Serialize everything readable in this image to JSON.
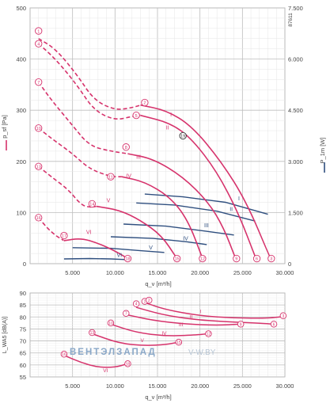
{
  "doc_id": "87611",
  "watermark": {
    "left": "ВЕНТЭЛЗАПАД",
    "right": "V-W.BY"
  },
  "colors": {
    "pressure": "#d6336c",
    "power": "#2f4f7f",
    "grid": "#cfcfcf",
    "axis_text": "#444444",
    "watermark_left": "#8aa8c8",
    "watermark_right": "#b9c7d6"
  },
  "chart_data": [
    {
      "type": "line",
      "x_ticks": [
        "5.000",
        "10.000",
        "15.000",
        "20.000",
        "25.000",
        "30.000"
      ],
      "xlim": [
        0,
        30000
      ],
      "xlabel": "q_v [m³/h]",
      "ylabel_left": "p_sf [Pa]",
      "ylabel_right": "P_1m [W]",
      "ylim": [
        0,
        500
      ],
      "ylim_right": [
        0,
        7500
      ],
      "y_ticks": [
        "0",
        "100",
        "200",
        "300",
        "400",
        "500"
      ],
      "y_ticks_right": [
        "0",
        "1.500",
        "3.000",
        "4.500",
        "6.000",
        "7.500"
      ],
      "grid": true,
      "pressure_curves": [
        {
          "name": "I",
          "dashed": [
            [
              1000,
              440
            ],
            [
              3000,
              420
            ],
            [
              5500,
              370
            ],
            [
              7500,
              320
            ],
            [
              10000,
              300
            ],
            [
              12000,
              305
            ],
            [
              13000,
              310
            ]
          ],
          "solid": [
            [
              13000,
              310
            ],
            [
              16000,
              300
            ],
            [
              19000,
              270
            ],
            [
              22500,
              200
            ],
            [
              25500,
              120
            ],
            [
              28300,
              10
            ]
          ]
        },
        {
          "name": "II",
          "dashed": [
            [
              1000,
              430
            ],
            [
              3000,
              400
            ],
            [
              5500,
              350
            ],
            [
              7500,
              300
            ],
            [
              10000,
              280
            ],
            [
              12000,
              288
            ],
            [
              13000,
              290
            ]
          ],
          "solid": [
            [
              13000,
              290
            ],
            [
              16500,
              275
            ],
            [
              19000,
              245
            ],
            [
              22000,
              180
            ],
            [
              24500,
              100
            ],
            [
              26600,
              10
            ]
          ]
        },
        {
          "name": "III",
          "dashed": [
            [
              1000,
              355
            ],
            [
              2500,
              320
            ],
            [
              5000,
              270
            ],
            [
              7000,
              230
            ],
            [
              9500,
              220
            ],
            [
              11500,
              215
            ]
          ],
          "solid": [
            [
              11500,
              215
            ],
            [
              14500,
              205
            ],
            [
              18000,
              170
            ],
            [
              21000,
              120
            ],
            [
              22800,
              70
            ],
            [
              24200,
              10
            ]
          ]
        },
        {
          "name": "IV",
          "dashed": [
            [
              1000,
              265
            ],
            [
              2500,
              245
            ],
            [
              5000,
              215
            ],
            [
              7000,
              185
            ],
            [
              9500,
              170
            ],
            [
              10800,
              170
            ]
          ],
          "solid": [
            [
              10800,
              170
            ],
            [
              13500,
              160
            ],
            [
              16500,
              130
            ],
            [
              18600,
              85
            ],
            [
              20300,
              10
            ]
          ]
        },
        {
          "name": "V",
          "dashed": [
            [
              1000,
              190
            ],
            [
              2500,
              170
            ],
            [
              4500,
              145
            ],
            [
              6000,
              115
            ],
            [
              7000,
              110
            ],
            [
              7800,
              112
            ]
          ],
          "solid": [
            [
              7800,
              112
            ],
            [
              10500,
              105
            ],
            [
              13000,
              85
            ],
            [
              15500,
              55
            ],
            [
              17300,
              10
            ]
          ]
        },
        {
          "name": "VI",
          "dashed": [
            [
              1000,
              90
            ],
            [
              2000,
              70
            ],
            [
              3000,
              55
            ],
            [
              4000,
              45
            ]
          ],
          "solid": [
            [
              4000,
              45
            ],
            [
              6000,
              50
            ],
            [
              8000,
              40
            ],
            [
              10000,
              25
            ],
            [
              11500,
              10
            ]
          ]
        }
      ],
      "power_curves": [
        {
          "name": "I",
          "points": [
            [
              13500,
              2040
            ],
            [
              18000,
              1960
            ],
            [
              23000,
              1800
            ],
            [
              28000,
              1450
            ]
          ]
        },
        {
          "name": "II",
          "points": [
            [
              12500,
              1780
            ],
            [
              17000,
              1720
            ],
            [
              22000,
              1540
            ],
            [
              26500,
              1250
            ]
          ]
        },
        {
          "name": "III",
          "points": [
            [
              11000,
              1160
            ],
            [
              16000,
              1100
            ],
            [
              20500,
              960
            ],
            [
              24000,
              840
            ]
          ]
        },
        {
          "name": "IV",
          "points": [
            [
              9500,
              790
            ],
            [
              14500,
              740
            ],
            [
              18500,
              640
            ],
            [
              20800,
              560
            ]
          ]
        },
        {
          "name": "V",
          "points": [
            [
              5000,
              470
            ],
            [
              9500,
              450
            ],
            [
              13000,
              380
            ],
            [
              15800,
              330
            ]
          ]
        },
        {
          "name": "VI",
          "points": [
            [
              4000,
              140
            ],
            [
              7000,
              150
            ],
            [
              9500,
              140
            ],
            [
              11300,
              120
            ]
          ]
        }
      ],
      "markers": [
        {
          "label": "1",
          "x": 1000,
          "y": 455
        },
        {
          "label": "4",
          "x": 1000,
          "y": 430
        },
        {
          "label": "7",
          "x": 1000,
          "y": 355
        },
        {
          "label": "10",
          "x": 1000,
          "y": 265
        },
        {
          "label": "13",
          "x": 1000,
          "y": 190
        },
        {
          "label": "16",
          "x": 1000,
          "y": 90
        },
        {
          "label": "2",
          "x": 13500,
          "y": 315
        },
        {
          "label": "5",
          "x": 12500,
          "y": 290
        },
        {
          "label": "8",
          "x": 11300,
          "y": 228
        },
        {
          "label": "11",
          "x": 9500,
          "y": 170
        },
        {
          "label": "14",
          "x": 7300,
          "y": 117
        },
        {
          "label": "17",
          "x": 4000,
          "y": 55
        },
        {
          "label": "3",
          "x": 28400,
          "y": 10
        },
        {
          "label": "6",
          "x": 26700,
          "y": 10
        },
        {
          "label": "9",
          "x": 24300,
          "y": 10
        },
        {
          "label": "12",
          "x": 20300,
          "y": 10
        },
        {
          "label": "15",
          "x": 17300,
          "y": 10
        },
        {
          "label": "18",
          "x": 11500,
          "y": 10
        },
        {
          "label": "19",
          "x": 18000,
          "y": 250
        }
      ],
      "curve_labels_pressure": [
        {
          "text": "I",
          "x": 16500,
          "y": 288
        },
        {
          "text": "II",
          "x": 16000,
          "y": 262
        },
        {
          "text": "III",
          "x": 12500,
          "y": 205
        },
        {
          "text": "IV",
          "x": 11300,
          "y": 168
        },
        {
          "text": "V",
          "x": 9000,
          "y": 120
        },
        {
          "text": "VI",
          "x": 6600,
          "y": 58
        }
      ],
      "curve_labels_power": [
        {
          "text": "I",
          "x": 24500,
          "y": 1860
        },
        {
          "text": "II",
          "x": 23500,
          "y": 1540
        },
        {
          "text": "III",
          "x": 20500,
          "y": 1070
        },
        {
          "text": "IV",
          "x": 18000,
          "y": 690
        },
        {
          "text": "V",
          "x": 14000,
          "y": 420
        },
        {
          "text": "VI",
          "x": 10200,
          "y": 200
        }
      ]
    },
    {
      "type": "line",
      "x_ticks": [
        "5.000",
        "10.000",
        "15.000",
        "20.000",
        "25.000",
        "30.000"
      ],
      "xlim": [
        0,
        30000
      ],
      "xlabel": "q_v [m³/h]",
      "ylabel": "L_WA5 [dB(A)]",
      "ylim": [
        55,
        90
      ],
      "y_ticks": [
        "55",
        "60",
        "65",
        "70",
        "75",
        "80",
        "85",
        "90"
      ],
      "grid": true,
      "series": [
        {
          "name": "I",
          "points": [
            [
              13500,
              86
            ],
            [
              16000,
              83
            ],
            [
              20000,
              80.5
            ],
            [
              24000,
              79.5
            ],
            [
              28000,
              79.5
            ],
            [
              29500,
              80
            ]
          ]
        },
        {
          "name": "II",
          "points": [
            [
              12500,
              84
            ],
            [
              15500,
              81
            ],
            [
              19000,
              79
            ],
            [
              23000,
              78
            ],
            [
              26500,
              77.5
            ],
            [
              28800,
              77
            ]
          ]
        },
        {
          "name": "III",
          "points": [
            [
              11300,
              81
            ],
            [
              14500,
              78.5
            ],
            [
              18500,
              77
            ],
            [
              22000,
              76.5
            ],
            [
              24800,
              77
            ]
          ]
        },
        {
          "name": "IV",
          "points": [
            [
              9500,
              77
            ],
            [
              12500,
              73.5
            ],
            [
              16000,
              72
            ],
            [
              19500,
              72.5
            ],
            [
              21000,
              73
            ]
          ]
        },
        {
          "name": "V",
          "points": [
            [
              7300,
              73
            ],
            [
              10500,
              69
            ],
            [
              13500,
              68
            ],
            [
              16000,
              68.5
            ],
            [
              17500,
              69.5
            ]
          ]
        },
        {
          "name": "VI",
          "points": [
            [
              4000,
              64
            ],
            [
              6000,
              61
            ],
            [
              8000,
              59
            ],
            [
              10000,
              59
            ],
            [
              11500,
              60.5
            ]
          ]
        }
      ],
      "markers": [
        {
          "label": "1",
          "x": 13500,
          "y": 86.5
        },
        {
          "label": "4",
          "x": 12500,
          "y": 85.5
        },
        {
          "label": "7",
          "x": 11300,
          "y": 81.5
        },
        {
          "label": "10",
          "x": 9500,
          "y": 77.5
        },
        {
          "label": "13",
          "x": 7300,
          "y": 73.5
        },
        {
          "label": "16",
          "x": 4000,
          "y": 64.5
        },
        {
          "label": "3",
          "x": 29800,
          "y": 80.5
        },
        {
          "label": "6",
          "x": 28700,
          "y": 77
        },
        {
          "label": "9",
          "x": 24800,
          "y": 77
        },
        {
          "label": "12",
          "x": 21000,
          "y": 73
        },
        {
          "label": "15",
          "x": 17500,
          "y": 69.5
        },
        {
          "label": "18",
          "x": 11500,
          "y": 60.5
        },
        {
          "label": "2",
          "x": 14000,
          "y": 87
        }
      ],
      "curve_labels": [
        {
          "text": "I",
          "x": 20000,
          "y": 81.5
        },
        {
          "text": "II",
          "x": 18800,
          "y": 79.2
        },
        {
          "text": "III",
          "x": 17500,
          "y": 76.2
        },
        {
          "text": "IV",
          "x": 15500,
          "y": 72.5
        },
        {
          "text": "V",
          "x": 13000,
          "y": 69.5
        },
        {
          "text": "VI",
          "x": 8600,
          "y": 57
        }
      ]
    }
  ]
}
